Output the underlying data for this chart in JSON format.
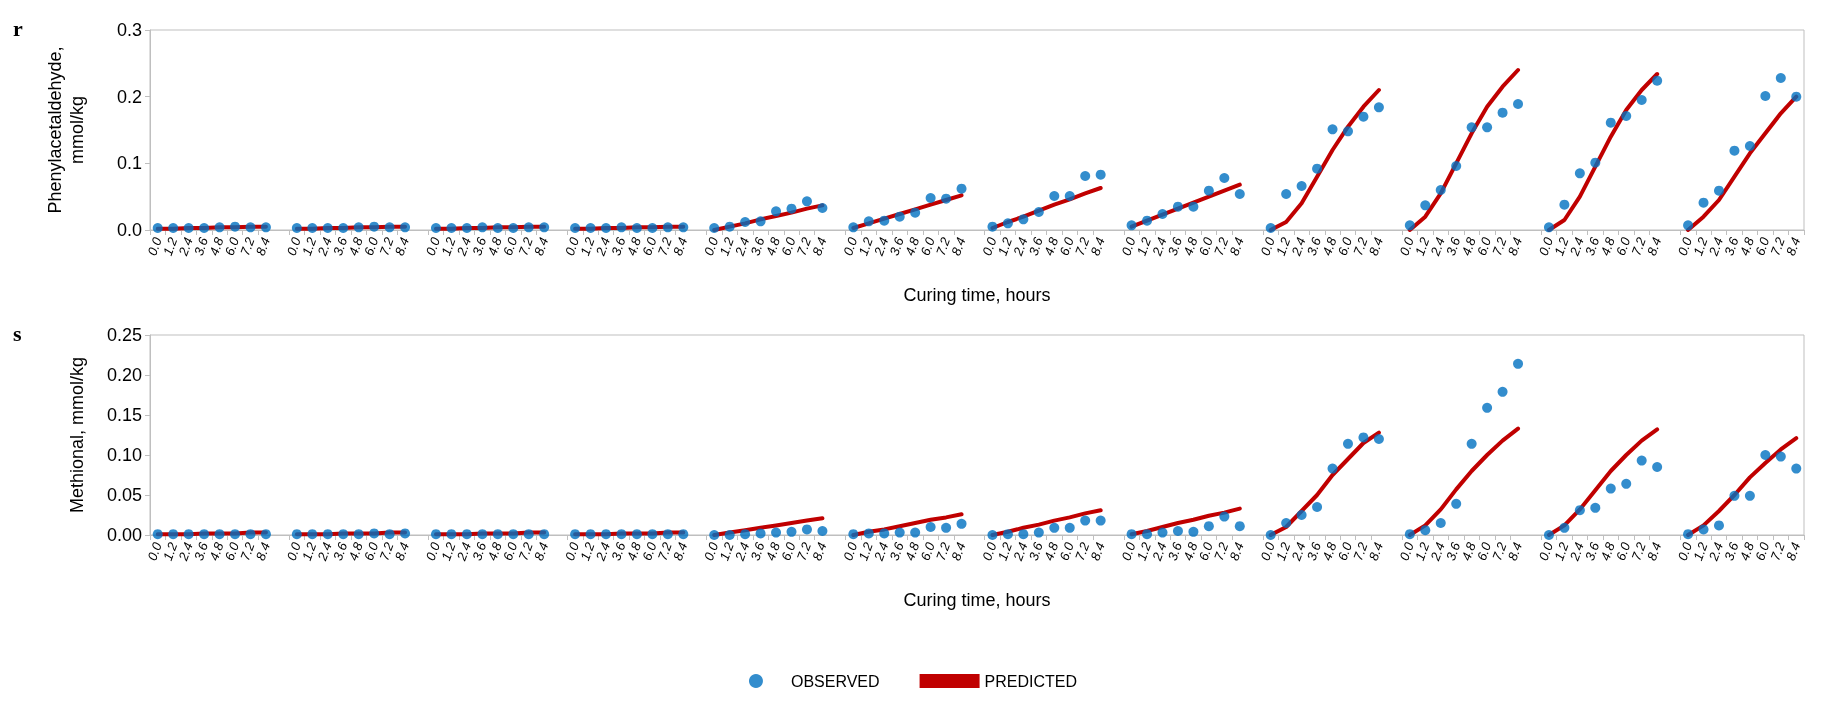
{
  "chart_data": [
    {
      "type": "scatter",
      "title": "r",
      "xlabel": "Curing time, hours",
      "ylabel": "Phenylacetaldehyde, mmol/kg",
      "categories": [
        "0.0",
        "1.2",
        "2.4",
        "3.6",
        "4.8",
        "6.0",
        "7.2",
        "8.4",
        null,
        "0.0",
        "1.2",
        "2.4",
        "3.6",
        "4.8",
        "6.0",
        "7.2",
        "8.4",
        null,
        "0.0",
        "1.2",
        "2.4",
        "3.6",
        "4.8",
        "6.0",
        "7.2",
        "8.4",
        null,
        "0.0",
        "1.2",
        "2.4",
        "3.6",
        "4.8",
        "6.0",
        "7.2",
        "8.4",
        null,
        "0.0",
        "1.2",
        "2.4",
        "3.6",
        "4.8",
        "6.0",
        "7.2",
        "8.4",
        null,
        "0.0",
        "1.2",
        "2.4",
        "3.6",
        "4.8",
        "6.0",
        "7.2",
        "8.4",
        null,
        "0.0",
        "1.2",
        "2.4",
        "3.6",
        "4.8",
        "6.0",
        "7.2",
        "8.4",
        null,
        "0.0",
        "1.2",
        "2.4",
        "3.6",
        "4.8",
        "6.0",
        "7.2",
        "8.4",
        null,
        "0.0",
        "1.2",
        "2.4",
        "3.6",
        "4.8",
        "6.0",
        "7.2",
        "8.4",
        null,
        "0.0",
        "1.2",
        "2.4",
        "3.6",
        "4.8",
        "6.0",
        "7.2",
        "8.4",
        null,
        "0.0",
        "1.2",
        "2.4",
        "3.6",
        "4.8",
        "6.0",
        "7.2",
        "8.4",
        null,
        "0.0",
        "1.2",
        "2.4",
        "3.6",
        "4.8",
        "6.0",
        "7.2",
        "8.4"
      ],
      "series": [
        {
          "type": "scatter",
          "marker": "circle",
          "color": "#0070c0",
          "values": [
            0.003,
            0.003,
            0.003,
            0.003,
            0.004,
            0.005,
            0.004,
            0.004,
            null,
            0.003,
            0.003,
            0.003,
            0.003,
            0.004,
            0.005,
            0.004,
            0.004,
            null,
            0.003,
            0.003,
            0.003,
            0.004,
            0.003,
            0.003,
            0.004,
            0.004,
            null,
            0.003,
            0.003,
            0.003,
            0.004,
            0.003,
            0.003,
            0.004,
            0.004,
            null,
            0.003,
            0.005,
            0.012,
            0.013,
            0.028,
            0.032,
            0.043,
            0.033,
            null,
            0.004,
            0.013,
            0.014,
            0.02,
            0.026,
            0.048,
            0.047,
            0.062,
            null,
            0.005,
            0.01,
            0.016,
            0.027,
            0.051,
            0.051,
            0.081,
            0.083,
            null,
            0.007,
            0.014,
            0.024,
            0.035,
            0.035,
            0.059,
            0.078,
            0.054,
            null,
            0.003,
            0.054,
            0.066,
            0.092,
            0.151,
            0.148,
            0.17,
            0.184,
            null,
            0.007,
            0.037,
            0.06,
            0.096,
            0.154,
            0.154,
            0.176,
            0.189,
            null,
            0.004,
            0.038,
            0.085,
            0.101,
            0.161,
            0.171,
            0.195,
            0.224,
            null,
            0.007,
            0.041,
            0.059,
            0.119,
            0.126,
            0.201,
            0.228,
            0.2
          ]
        },
        {
          "type": "line",
          "marker": "none",
          "line_style": "solid",
          "color": "#c00000",
          "values": [
            0.002,
            0.002,
            0.003,
            0.003,
            0.004,
            0.004,
            0.005,
            0.005,
            null,
            0.002,
            0.002,
            0.003,
            0.003,
            0.004,
            0.004,
            0.005,
            0.005,
            null,
            0.002,
            0.002,
            0.003,
            0.003,
            0.004,
            0.004,
            0.005,
            0.005,
            null,
            0.002,
            0.002,
            0.003,
            0.003,
            0.004,
            0.004,
            0.005,
            0.005,
            null,
            0.0,
            0.005,
            0.01,
            0.016,
            0.021,
            0.026,
            0.032,
            0.037,
            null,
            0.003,
            0.01,
            0.017,
            0.024,
            0.031,
            0.038,
            0.045,
            0.052,
            null,
            0.003,
            0.012,
            0.02,
            0.029,
            0.038,
            0.046,
            0.055,
            0.063,
            null,
            0.005,
            0.014,
            0.023,
            0.032,
            0.041,
            0.05,
            0.059,
            0.068,
            null,
            0.0,
            0.012,
            0.04,
            0.08,
            0.12,
            0.155,
            0.185,
            0.21,
            null,
            0.0,
            0.02,
            0.055,
            0.1,
            0.145,
            0.185,
            0.215,
            0.24,
            null,
            0.0,
            0.015,
            0.05,
            0.095,
            0.14,
            0.18,
            0.21,
            0.234,
            null,
            0.0,
            0.02,
            0.045,
            0.08,
            0.115,
            0.145,
            0.175,
            0.2
          ]
        }
      ],
      "ylim": [
        0,
        0.3
      ],
      "yticks": [
        {
          "value": 0,
          "label": "0.0"
        },
        0.1,
        0.2,
        0.3
      ],
      "grid": false,
      "legend": false
    },
    {
      "type": "scatter",
      "title": "s",
      "xlabel": "Curing time, hours",
      "ylabel": "Methional, mmol/kg",
      "categories": [
        "0.0",
        "1.2",
        "2.4",
        "3.6",
        "4.8",
        "6.0",
        "7.2",
        "8.4",
        null,
        "0.0",
        "1.2",
        "2.4",
        "3.6",
        "4.8",
        "6.0",
        "7.2",
        "8.4",
        null,
        "0.0",
        "1.2",
        "2.4",
        "3.6",
        "4.8",
        "6.0",
        "7.2",
        "8.4",
        null,
        "0.0",
        "1.2",
        "2.4",
        "3.6",
        "4.8",
        "6.0",
        "7.2",
        "8.4",
        null,
        "0.0",
        "1.2",
        "2.4",
        "3.6",
        "4.8",
        "6.0",
        "7.2",
        "8.4",
        null,
        "0.0",
        "1.2",
        "2.4",
        "3.6",
        "4.8",
        "6.0",
        "7.2",
        "8.4",
        null,
        "0.0",
        "1.2",
        "2.4",
        "3.6",
        "4.8",
        "6.0",
        "7.2",
        "8.4",
        null,
        "0.0",
        "1.2",
        "2.4",
        "3.6",
        "4.8",
        "6.0",
        "7.2",
        "8.4",
        null,
        "0.0",
        "1.2",
        "2.4",
        "3.6",
        "4.8",
        "6.0",
        "7.2",
        "8.4",
        null,
        "0.0",
        "1.2",
        "2.4",
        "3.6",
        "4.8",
        "6.0",
        "7.2",
        "8.4",
        null,
        "0.0",
        "1.2",
        "2.4",
        "3.6",
        "4.8",
        "6.0",
        "7.2",
        "8.4",
        null,
        "0.0",
        "1.2",
        "2.4",
        "3.6",
        "4.8",
        "6.0",
        "7.2",
        "8.4"
      ],
      "series": [
        {
          "name": "OBSERVED",
          "type": "scatter",
          "marker": "circle",
          "color": "#0070c0",
          "values": [
            0.001,
            0.001,
            0.001,
            0.001,
            0.001,
            0.001,
            0.001,
            0.001,
            null,
            0.001,
            0.001,
            0.001,
            0.001,
            0.001,
            0.002,
            0.001,
            0.002,
            null,
            0.001,
            0.001,
            0.001,
            0.001,
            0.001,
            0.001,
            0.001,
            0.001,
            null,
            0.001,
            0.001,
            0.001,
            0.001,
            0.001,
            0.001,
            0.001,
            0.001,
            null,
            0.0,
            0.0,
            0.001,
            0.002,
            0.003,
            0.004,
            0.007,
            0.005,
            null,
            0.001,
            0.002,
            0.002,
            0.003,
            0.003,
            0.01,
            0.009,
            0.014,
            null,
            0.0,
            0.001,
            0.001,
            0.003,
            0.009,
            0.009,
            0.018,
            0.018,
            null,
            0.001,
            0.001,
            0.003,
            0.005,
            0.004,
            0.011,
            0.023,
            0.011,
            null,
            0.0,
            0.015,
            0.025,
            0.035,
            0.083,
            0.114,
            0.122,
            0.12,
            null,
            0.001,
            0.006,
            0.015,
            0.039,
            0.114,
            0.159,
            0.179,
            0.214,
            null,
            0.0,
            0.009,
            0.031,
            0.034,
            0.058,
            0.064,
            0.093,
            0.085,
            null,
            0.001,
            0.007,
            0.012,
            0.049,
            0.049,
            0.1,
            0.098,
            0.083
          ]
        },
        {
          "name": "PREDICTED",
          "type": "line",
          "marker": "none",
          "line_style": "solid",
          "color": "#c00000",
          "values": [
            0.001,
            0.001,
            0.001,
            0.002,
            0.002,
            0.002,
            0.003,
            0.003,
            null,
            0.001,
            0.001,
            0.001,
            0.002,
            0.002,
            0.002,
            0.003,
            0.003,
            null,
            0.001,
            0.001,
            0.001,
            0.002,
            0.002,
            0.002,
            0.003,
            0.003,
            null,
            0.001,
            0.001,
            0.001,
            0.002,
            0.002,
            0.002,
            0.003,
            0.003,
            null,
            0.0,
            0.003,
            0.006,
            0.009,
            0.012,
            0.015,
            0.018,
            0.021,
            null,
            0.0,
            0.004,
            0.007,
            0.011,
            0.015,
            0.019,
            0.022,
            0.026,
            null,
            0.0,
            0.004,
            0.009,
            0.013,
            0.018,
            0.022,
            0.027,
            0.031,
            null,
            0.001,
            0.005,
            0.01,
            0.015,
            0.019,
            0.024,
            0.028,
            0.033,
            null,
            0.0,
            0.01,
            0.03,
            0.05,
            0.075,
            0.095,
            0.115,
            0.128,
            null,
            0.0,
            0.012,
            0.032,
            0.057,
            0.08,
            0.1,
            0.118,
            0.133,
            null,
            0.0,
            0.012,
            0.032,
            0.056,
            0.08,
            0.1,
            0.118,
            0.132,
            null,
            0.0,
            0.012,
            0.03,
            0.05,
            0.072,
            0.09,
            0.107,
            0.121
          ]
        }
      ],
      "ylim": [
        0,
        0.25
      ],
      "yticks": [
        {
          "value": 0,
          "label": "0.00"
        },
        {
          "value": 0.05,
          "label": "0.05"
        },
        {
          "value": 0.1,
          "label": "0.10"
        },
        {
          "value": 0.15,
          "label": "0.15"
        },
        {
          "value": 0.2,
          "label": "0.20"
        },
        {
          "value": 0.25,
          "label": "0.25"
        }
      ],
      "grid": false,
      "legend": "bottom"
    }
  ]
}
